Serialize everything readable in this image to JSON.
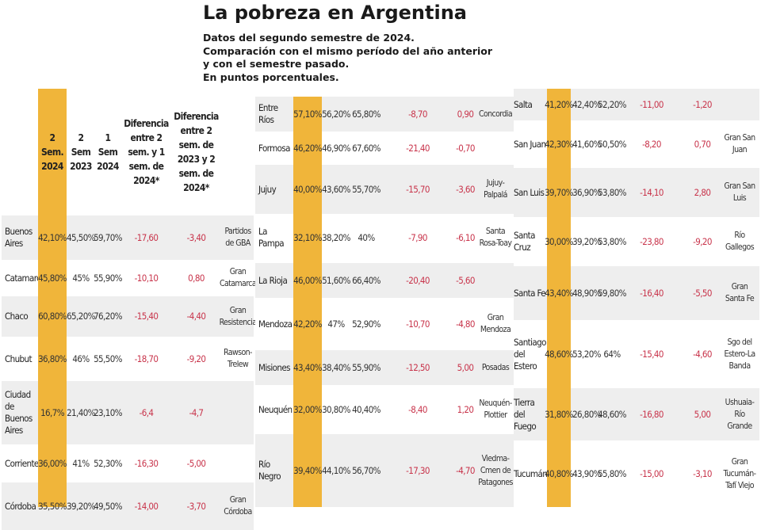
{
  "header": {
    "title": "La pobreza en Argentina",
    "subtitle_lines": [
      "Datos del segundo semestre de 2024.",
      "Comparación con el mismo período del año anterior",
      "y con el semestre pasado.",
      "En puntos porcentuales."
    ]
  },
  "colors": {
    "highlight": "#f0b53a",
    "negative": "#c8334a",
    "stripe": "#eeeeee"
  },
  "table_header": {
    "sem2_2024": "2 Sem. 2024",
    "sem2_2023": "2 Sem 2023",
    "sem1_2024": "1 Sem 2024",
    "diff_1": "Diferencia entre 2 sem. y 1 sem. de 2024*",
    "diff_2": "Diferencia entre 2 sem. de 2023 y 2 sem. de 2024*"
  },
  "panels": [
    {
      "rows": [
        {
          "province": "Buenos Aires",
          "s2_2024": "42,10%",
          "s2_2023": "45,50%",
          "s1_2024": "59,70%",
          "d1": "-17,60",
          "d2": "-3,40",
          "city": "Partidos de GBA"
        },
        {
          "province": "Catamarca",
          "s2_2024": "45,80%",
          "s2_2023": "45%",
          "s1_2024": "55,90%",
          "d1": "-10,10",
          "d2": "0,80",
          "city": "Gran Catamarca"
        },
        {
          "province": "Chaco",
          "s2_2024": "60,80%",
          "s2_2023": "65,20%",
          "s1_2024": "76,20%",
          "d1": "-15,40",
          "d2": "-4,40",
          "city": "Gran Resistencia"
        },
        {
          "province": "Chubut",
          "s2_2024": "36,80%",
          "s2_2023": "46%",
          "s1_2024": "55,50%",
          "d1": "-18,70",
          "d2": "-9,20",
          "city": "Rawson-Trelew"
        },
        {
          "province": "Ciudad de Buenos Aires",
          "s2_2024": "16,7%",
          "s2_2023": "21,40%",
          "s1_2024": "23,10%",
          "d1": "-6,4",
          "d2": "-4,7",
          "city": ""
        },
        {
          "province": "Corrientes",
          "s2_2024": "36,00%",
          "s2_2023": "41%",
          "s1_2024": "52,30%",
          "d1": "-16,30",
          "d2": "-5,00",
          "city": ""
        },
        {
          "province": "Córdoba",
          "s2_2024": "35,50%",
          "s2_2023": "39,20%",
          "s1_2024": "49,50%",
          "d1": "-14,00",
          "d2": "-3,70",
          "city": "Gran Córdoba"
        }
      ]
    },
    {
      "rows": [
        {
          "province": "Entre Ríos",
          "s2_2024": "57,10%",
          "s2_2023": "56,20%",
          "s1_2024": "65,80%",
          "d1": "-8,70",
          "d2": "0,90",
          "city": "Concordia"
        },
        {
          "province": "Formosa",
          "s2_2024": "46,20%",
          "s2_2023": "46,90%",
          "s1_2024": "67,60%",
          "d1": "-21,40",
          "d2": "-0,70",
          "city": ""
        },
        {
          "province": "Jujuy",
          "s2_2024": "40,00%",
          "s2_2023": "43,60%",
          "s1_2024": "55,70%",
          "d1": "-15,70",
          "d2": "-3,60",
          "city": "Jujuy-Palpalá"
        },
        {
          "province": "La Pampa",
          "s2_2024": "32,10%",
          "s2_2023": "38,20%",
          "s1_2024": "40%",
          "d1": "-7,90",
          "d2": "-6,10",
          "city": "Santa Rosa-Toay"
        },
        {
          "province": "La Rioja",
          "s2_2024": "46,00%",
          "s2_2023": "51,60%",
          "s1_2024": "66,40%",
          "d1": "-20,40",
          "d2": "-5,60",
          "city": ""
        },
        {
          "province": "Mendoza",
          "s2_2024": "42,20%",
          "s2_2023": "47%",
          "s1_2024": "52,90%",
          "d1": "-10,70",
          "d2": "-4,80",
          "city": "Gran Mendoza"
        },
        {
          "province": "Misiones",
          "s2_2024": "43,40%",
          "s2_2023": "38,40%",
          "s1_2024": "55,90%",
          "d1": "-12,50",
          "d2": "5,00",
          "city": "Posadas"
        },
        {
          "province": "Neuquén",
          "s2_2024": "32,00%",
          "s2_2023": "30,80%",
          "s1_2024": "40,40%",
          "d1": "-8,40",
          "d2": "1,20",
          "city": "Neuquén-Plottier"
        },
        {
          "province": "Río Negro",
          "s2_2024": "39,40%",
          "s2_2023": "44,10%",
          "s1_2024": "56,70%",
          "d1": "-17,30",
          "d2": "-4,70",
          "city": "Viedma-Cmen de Patagones"
        }
      ]
    },
    {
      "rows": [
        {
          "province": "Salta",
          "s2_2024": "41,20%",
          "s2_2023": "42,40%",
          "s1_2024": "52,20%",
          "d1": "-11,00",
          "d2": "-1,20",
          "city": ""
        },
        {
          "province": "San Juan",
          "s2_2024": "42,30%",
          "s2_2023": "41,60%",
          "s1_2024": "50,50%",
          "d1": "-8,20",
          "d2": "0,70",
          "city": "Gran San Juan"
        },
        {
          "province": "San Luis",
          "s2_2024": "39,70%",
          "s2_2023": "36,90%",
          "s1_2024": "53,80%",
          "d1": "-14,10",
          "d2": "2,80",
          "city": "Gran San Luis"
        },
        {
          "province": "Santa Cruz",
          "s2_2024": "30,00%",
          "s2_2023": "39,20%",
          "s1_2024": "53,80%",
          "d1": "-23,80",
          "d2": "-9,20",
          "city": "Río Gallegos"
        },
        {
          "province": "Santa Fe",
          "s2_2024": "43,40%",
          "s2_2023": "48,90%",
          "s1_2024": "59,80%",
          "d1": "-16,40",
          "d2": "-5,50",
          "city": "Gran Santa Fe"
        },
        {
          "province": "Santiago del Estero",
          "s2_2024": "48,60%",
          "s2_2023": "53,20%",
          "s1_2024": "64%",
          "d1": "-15,40",
          "d2": "-4,60",
          "city": "Sgo del Estero-La Banda"
        },
        {
          "province": "Tierra del Fuego",
          "s2_2024": "31,80%",
          "s2_2023": "26,80%",
          "s1_2024": "48,60%",
          "d1": "-16,80",
          "d2": "5,00",
          "city": "Ushuaia-Río Grande"
        },
        {
          "province": "Tucumán",
          "s2_2024": "40,80%",
          "s2_2023": "43,90%",
          "s1_2024": "55,80%",
          "d1": "-15,00",
          "d2": "-3,10",
          "city": "Gran Tucumán-Tafí Viejo"
        }
      ]
    }
  ]
}
